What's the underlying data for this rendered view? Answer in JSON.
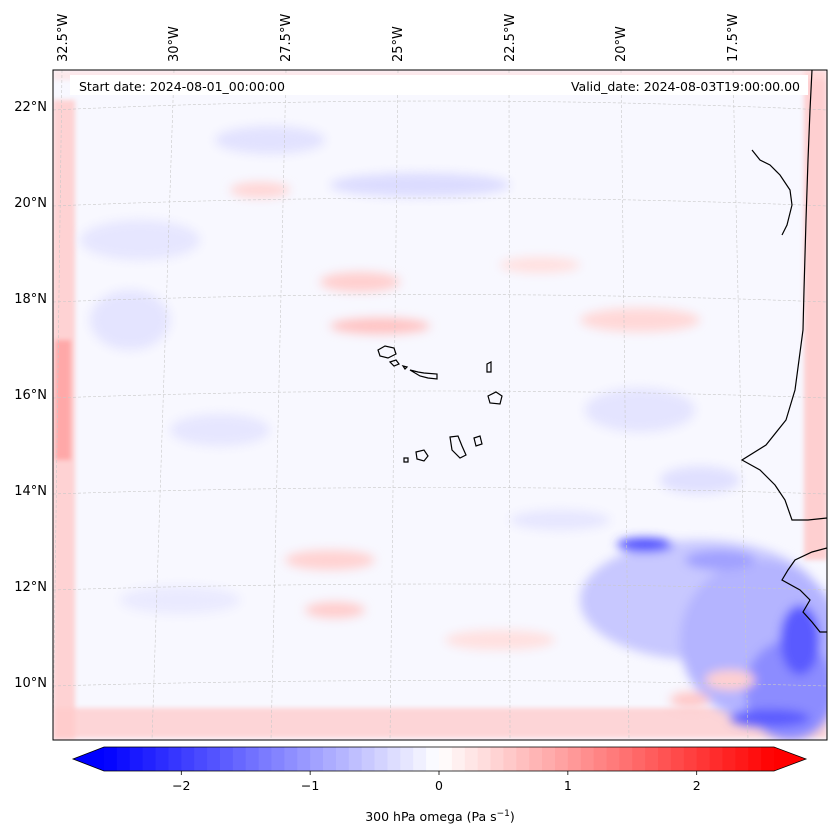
{
  "header": {
    "start_date": "Start date: 2024-08-01_00:00:00",
    "valid_date": "Valid_date: 2024-08-03T19:00:00.00"
  },
  "map": {
    "projection": "lambert-conformal",
    "variable": "300 hPa omega",
    "lon_labels": [
      "32.5°W",
      "30°W",
      "27.5°W",
      "25°W",
      "22.5°W",
      "20°W",
      "17.5°W"
    ],
    "lat_labels": [
      "22°N",
      "20°N",
      "18°N",
      "16°N",
      "14°N",
      "12°N",
      "10°N"
    ],
    "gridlines": "dashed-light-gray",
    "features": [
      "coastline",
      "Cape Verde islands"
    ]
  },
  "colorbar": {
    "label": "300 hPa omega (Pa s",
    "label_sup": "−1",
    "label_end": ")",
    "ticks": [
      "−2",
      "−1",
      "0",
      "1",
      "2"
    ],
    "tick_values": [
      -2,
      -1,
      0,
      1,
      2
    ],
    "range": [
      -2.6,
      2.6
    ],
    "extend": "both",
    "colormap": "bwr",
    "colors": {
      "min": "#0000ff",
      "mid": "#ffffff",
      "max": "#ff0000"
    }
  }
}
